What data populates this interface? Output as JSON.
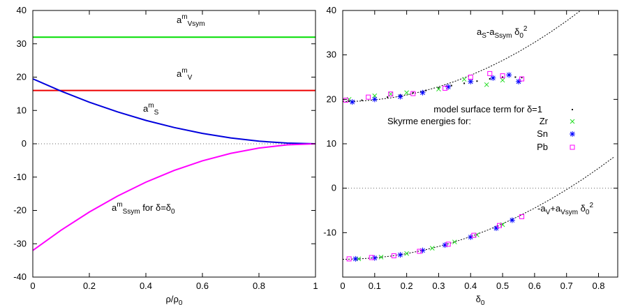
{
  "chart_data": [
    {
      "type": "line",
      "xlim": [
        0,
        1
      ],
      "ylim": [
        -40,
        40
      ],
      "xticks": [
        0,
        0.2,
        0.4,
        0.6,
        0.8,
        1
      ],
      "yticks": [
        -40,
        -30,
        -20,
        -10,
        0,
        10,
        20,
        30,
        40
      ],
      "x_label": [
        {
          "text": "ρ/ρ"
        },
        {
          "text": "0",
          "pos": "sub"
        }
      ],
      "reference_lines": [
        0
      ],
      "series": [
        {
          "color": "#00dd00",
          "x": [
            0,
            1
          ],
          "values": [
            32,
            32
          ]
        },
        {
          "color": "#ee0000",
          "x": [
            0,
            1
          ],
          "values": [
            16,
            16
          ]
        },
        {
          "color": "#0000dd",
          "x": [
            0,
            0.1,
            0.2,
            0.3,
            0.4,
            0.5,
            0.6,
            0.7,
            0.8,
            0.9,
            1
          ],
          "values": [
            19.5,
            15.8,
            12.48,
            9.56,
            7.02,
            4.88,
            3.12,
            1.76,
            0.78,
            0.2,
            0
          ]
        },
        {
          "color": "#ff00ff",
          "x": [
            0,
            0.1,
            0.2,
            0.3,
            0.4,
            0.5,
            0.6,
            0.7,
            0.8,
            0.9,
            1
          ],
          "values": [
            -32,
            -25.92,
            -20.48,
            -15.68,
            -11.52,
            -8,
            -5.12,
            -2.88,
            -1.28,
            -0.32,
            0
          ]
        }
      ],
      "annotations": [
        [
          {
            "text": "a"
          },
          {
            "text": "m",
            "pos": "sup"
          },
          {
            "text": "Vsym",
            "pos": "sub"
          }
        ],
        [
          {
            "text": "a"
          },
          {
            "text": "m",
            "pos": "sup"
          },
          {
            "text": "V",
            "pos": "sub"
          }
        ],
        [
          {
            "text": "a"
          },
          {
            "text": "m",
            "pos": "sup"
          },
          {
            "text": "S",
            "pos": "sub"
          }
        ],
        [
          {
            "text": "a"
          },
          {
            "text": "m",
            "pos": "sup"
          },
          {
            "text": "Ssym",
            "pos": "sub"
          },
          {
            "text": " for δ=δ"
          },
          {
            "text": "0",
            "pos": "sub"
          }
        ]
      ]
    },
    {
      "type": "scatter",
      "xlim": [
        0,
        0.86
      ],
      "ylim": [
        -20,
        40
      ],
      "xticks": [
        0,
        0.1,
        0.2,
        0.3,
        0.4,
        0.5,
        0.6,
        0.7,
        0.8
      ],
      "yticks": [
        -10,
        0,
        10,
        20,
        30,
        40
      ],
      "x_label": [
        {
          "text": "δ"
        },
        {
          "text": "0",
          "pos": "sub"
        }
      ],
      "reference_lines": [
        0
      ],
      "curves": [
        {
          "x": [
            0,
            0.05,
            0.1,
            0.15,
            0.2,
            0.25,
            0.3,
            0.35,
            0.4,
            0.45,
            0.5,
            0.55,
            0.6,
            0.65,
            0.7,
            0.75
          ],
          "values": [
            19.5,
            19.59,
            19.87,
            20.33,
            20.98,
            21.81,
            22.83,
            24.03,
            25.42,
            26.99,
            28.75,
            30.69,
            32.82,
            35.13,
            37.63,
            40.31
          ]
        },
        {
          "x": [
            0,
            0.05,
            0.1,
            0.15,
            0.2,
            0.25,
            0.3,
            0.35,
            0.4,
            0.45,
            0.5,
            0.55,
            0.6,
            0.65,
            0.7,
            0.75,
            0.8,
            0.85
          ],
          "values": [
            -16,
            -15.92,
            -15.68,
            -15.28,
            -14.72,
            -14,
            -13.12,
            -12.08,
            -10.88,
            -9.52,
            -8,
            -6.32,
            -4.48,
            -2.48,
            -0.32,
            2,
            4.48,
            7.12
          ]
        }
      ],
      "annotations": [
        [
          {
            "text": "a"
          },
          {
            "text": "S",
            "pos": "sub"
          },
          {
            "text": "-a"
          },
          {
            "text": "Ssym",
            "pos": "sub"
          },
          {
            "text": " δ"
          },
          {
            "text": "0",
            "pos": "sub"
          },
          {
            "text": "2",
            "pos": "sup"
          }
        ],
        [
          {
            "text": "-a"
          },
          {
            "text": "V",
            "pos": "sub"
          },
          {
            "text": "+a"
          },
          {
            "text": "Vsym",
            "pos": "sub"
          },
          {
            "text": " δ"
          },
          {
            "text": "0",
            "pos": "sub"
          },
          {
            "text": "2",
            "pos": "sup"
          }
        ]
      ],
      "legend": "right",
      "legend_heading": "Skyrme energies for:",
      "series": [
        {
          "name": "model surface term for δ=1",
          "color": "#000000",
          "marker": "dot",
          "x": [
            0.02,
            0.06,
            0.1,
            0.14,
            0.18,
            0.22,
            0.26,
            0.3,
            0.34,
            0.38,
            0.42,
            0.46,
            0.5,
            0.54,
            0.56
          ],
          "values": [
            19.6,
            19.8,
            20.1,
            20.5,
            21,
            21.5,
            22,
            22.6,
            23.1,
            23.6,
            24.1,
            24.6,
            25,
            25,
            24.9
          ]
        },
        {
          "name": "Zr",
          "color": "#22dd22",
          "marker": "x",
          "x": [
            0.02,
            0.1,
            0.15,
            0.2,
            0.3,
            0.38,
            0.45,
            0.5,
            0.05,
            0.12,
            0.2,
            0.28,
            0.35,
            0.42,
            0.5
          ],
          "values": [
            20,
            20.8,
            21.2,
            21.5,
            22.3,
            24.5,
            23.3,
            24.3,
            -15.9,
            -15.5,
            -14.7,
            -13.5,
            -12.1,
            -10.5,
            -8.2
          ]
        },
        {
          "name": "Sn",
          "color": "#0000ff",
          "marker": "star",
          "x": [
            0.03,
            0.1,
            0.18,
            0.25,
            0.33,
            0.4,
            0.47,
            0.52,
            0.55,
            0.04,
            0.1,
            0.18,
            0.25,
            0.32,
            0.4,
            0.48,
            0.53
          ],
          "values": [
            19.4,
            20,
            20.6,
            21.5,
            22.8,
            24,
            24.8,
            25.5,
            24,
            -15.9,
            -15.7,
            -15,
            -14,
            -12.8,
            -11,
            -9,
            -7.2
          ]
        },
        {
          "name": "Pb",
          "color": "#ff00ff",
          "marker": "square",
          "x": [
            0.01,
            0.08,
            0.15,
            0.22,
            0.32,
            0.4,
            0.46,
            0.5,
            0.56,
            0.02,
            0.09,
            0.16,
            0.24,
            0.33,
            0.41,
            0.49,
            0.56
          ],
          "values": [
            19.8,
            20.5,
            21.2,
            21.3,
            22.5,
            25,
            25.8,
            25.3,
            24.6,
            -15.9,
            -15.6,
            -15.2,
            -14.2,
            -12.6,
            -10.6,
            -8.4,
            -6.4
          ]
        }
      ]
    }
  ]
}
